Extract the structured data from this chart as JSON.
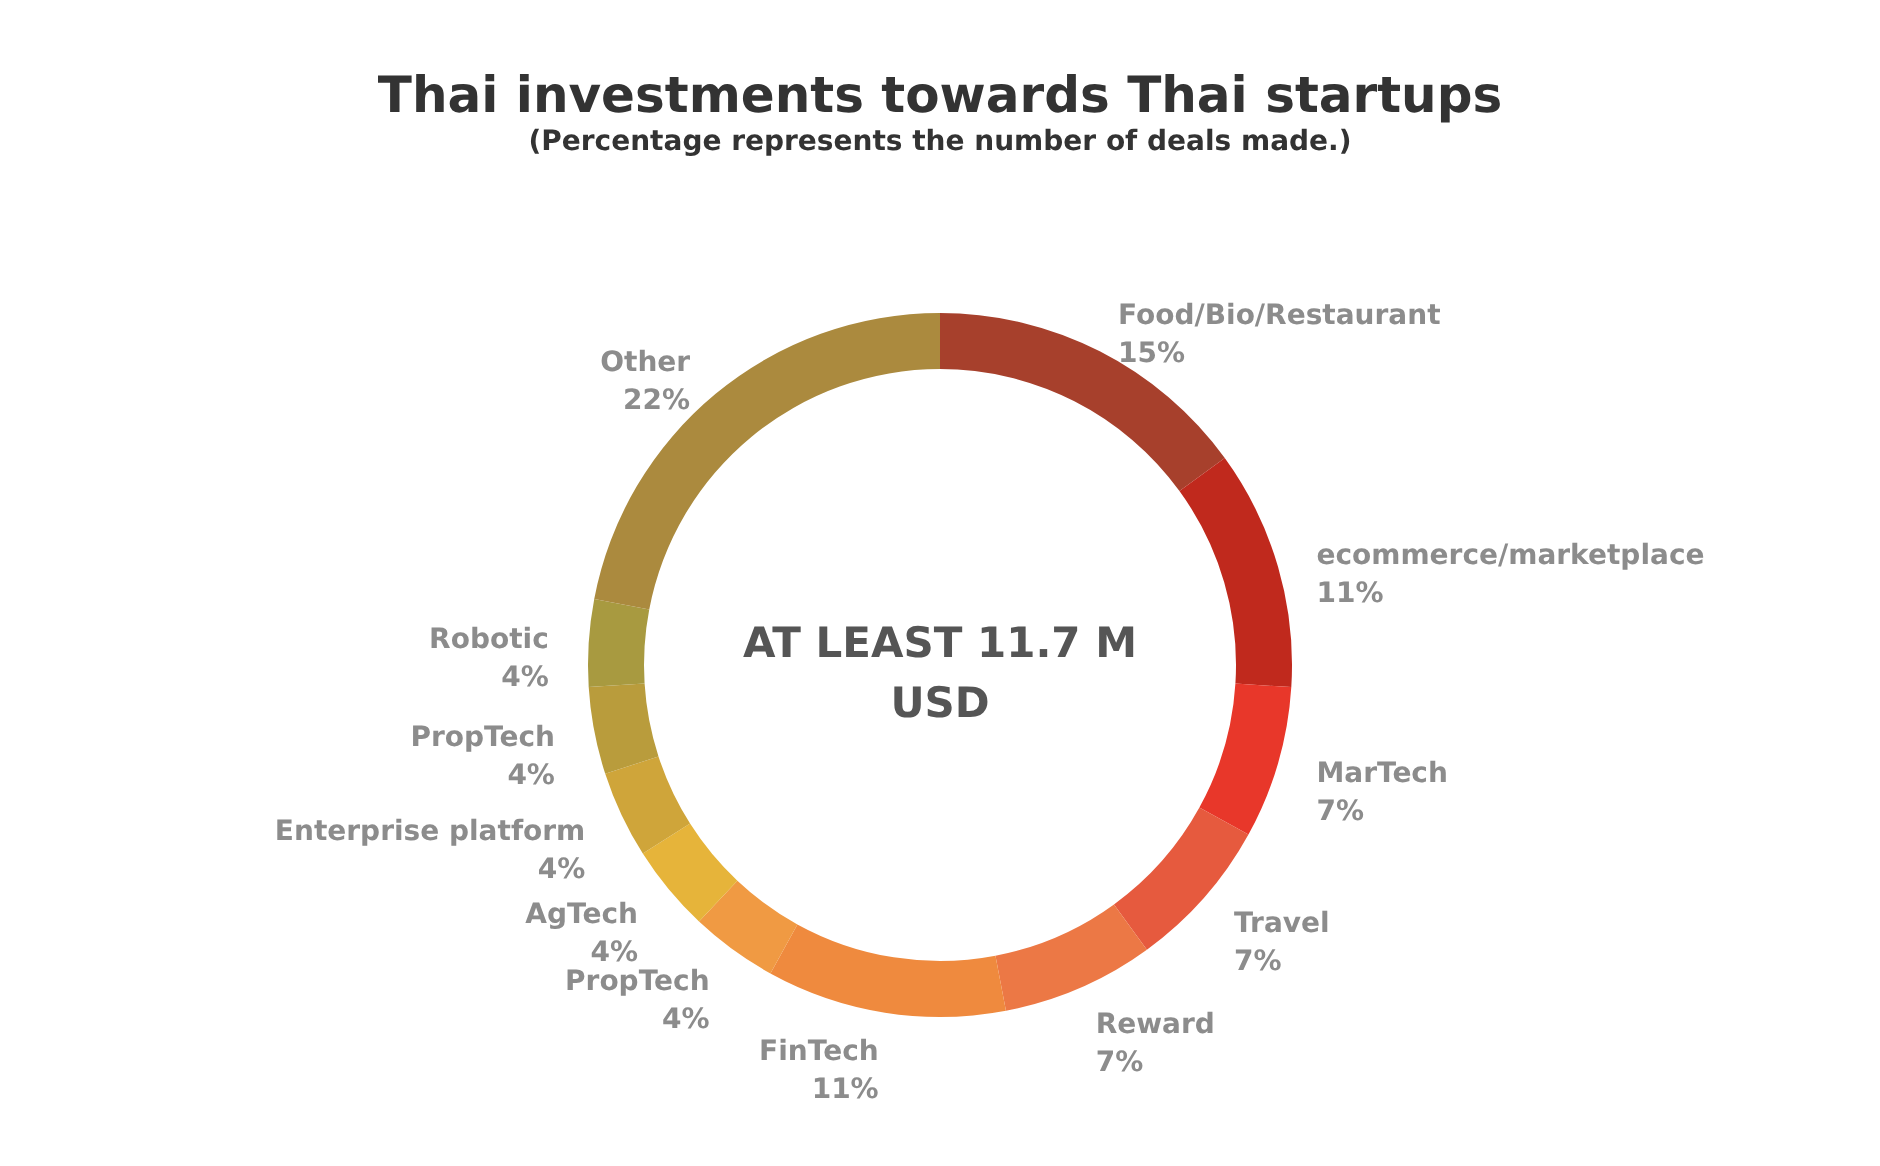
{
  "chart_data": {
    "type": "donut",
    "title": "Thai investments towards Thai startups",
    "subtitle": "(Percentage represents the number of deals made.)",
    "categories": [
      "Food/Bio/Restaurant",
      "ecommerce/marketplace",
      "MarTech",
      "Travel",
      "Reward",
      "FinTech",
      "PropTech",
      "AgTech",
      "Enterprise platform",
      "PropTech",
      "Robotic",
      "Other"
    ],
    "values": [
      15,
      11,
      7,
      7,
      7,
      11,
      4,
      4,
      4,
      4,
      4,
      22
    ],
    "value_labels": [
      "15%",
      "11%",
      "7%",
      "7%",
      "7%",
      "11%",
      "4%",
      "4%",
      "4%",
      "4%",
      "4%",
      "22%"
    ],
    "colors": [
      "#a7402c",
      "#c0291d",
      "#e8372a",
      "#e65a3e",
      "#ec7845",
      "#ef8a3e",
      "#f09a43",
      "#e6b43a",
      "#cfa53a",
      "#b99c3c",
      "#a89a40",
      "#ab8a3e"
    ],
    "annotations": [
      "AT LEAST 11.7 M USD"
    ]
  }
}
